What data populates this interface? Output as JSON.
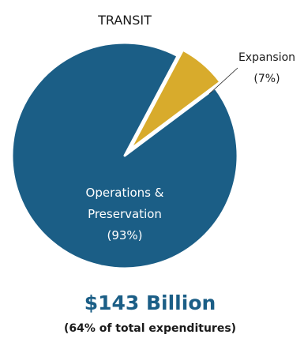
{
  "chart_data": {
    "type": "pie",
    "title": "TRANSIT",
    "slices": [
      {
        "label": "Operations &",
        "label_line2": "Preservation",
        "pct_label": "(93%)",
        "value": 93,
        "color": "#1b5e86"
      },
      {
        "label": "Expansion",
        "label_line2": "",
        "pct_label": "(7%)",
        "value": 7,
        "color": "#d8ab2c"
      }
    ],
    "total": {
      "value_label": "$143 Billion",
      "note": "(64% of total expenditures)",
      "color": "#1b5e86"
    }
  }
}
